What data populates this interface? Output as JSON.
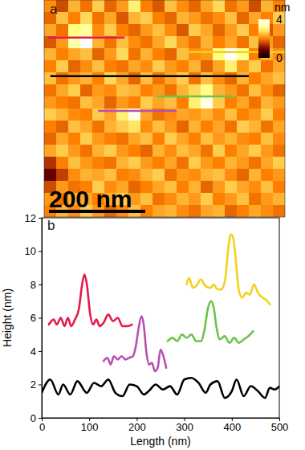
{
  "chart_data": [
    {
      "type": "heatmap",
      "panel_label": "a",
      "xlim": [
        0,
        500
      ],
      "ylim": [
        0,
        450
      ],
      "tick_labels": false,
      "x": [
        12.5,
        37.5,
        62.5,
        87.5,
        112.5,
        137.5,
        162.5,
        187.5,
        212.5,
        237.5,
        262.5,
        287.5,
        312.5,
        337.5,
        362.5,
        387.5,
        412.5,
        437.5,
        462.5,
        487.5
      ],
      "y": [
        437.5,
        412.5,
        387.5,
        362.5,
        337.5,
        312.5,
        287.5,
        262.5,
        237.5,
        212.5,
        187.5,
        162.5,
        137.5,
        112.5,
        87.5,
        62.5,
        37.5,
        12.5
      ],
      "z": [
        [
          2.1,
          1.6,
          2.4,
          1.9,
          2.6,
          1.8,
          2.2,
          2.9,
          2.0,
          1.7,
          2.5,
          2.1,
          1.8,
          2.3,
          2.7,
          1.9,
          2.2,
          1.6,
          2.4,
          2.0
        ],
        [
          1.8,
          2.5,
          2.0,
          2.7,
          1.9,
          2.3,
          1.7,
          2.4,
          2.6,
          2.0,
          1.8,
          2.4,
          2.2,
          1.9,
          2.1,
          2.5,
          1.8,
          2.3,
          2.0,
          2.6
        ],
        [
          2.3,
          1.9,
          3.0,
          3.2,
          2.1,
          2.6,
          2.0,
          1.8,
          2.2,
          2.5,
          2.1,
          1.7,
          2.6,
          2.3,
          1.8,
          2.2,
          2.6,
          2.0,
          1.7,
          2.2
        ],
        [
          1.7,
          2.2,
          3.3,
          4.0,
          2.4,
          1.9,
          2.5,
          2.1,
          1.9,
          2.3,
          2.7,
          2.2,
          1.9,
          2.4,
          2.0,
          2.3,
          1.9,
          2.5,
          2.2,
          1.8
        ],
        [
          2.4,
          2.0,
          2.3,
          2.5,
          1.8,
          2.2,
          2.7,
          1.9,
          2.4,
          2.0,
          1.8,
          2.5,
          2.1,
          2.2,
          3.0,
          4.0,
          3.1,
          2.0,
          2.4,
          2.1
        ],
        [
          2.0,
          2.6,
          1.8,
          2.1,
          2.5,
          2.0,
          1.9,
          2.3,
          2.1,
          2.6,
          2.2,
          2.0,
          2.4,
          1.8,
          2.3,
          2.9,
          2.2,
          2.6,
          1.9,
          2.3
        ],
        [
          2.5,
          1.9,
          2.2,
          2.4,
          2.0,
          2.7,
          2.3,
          1.8,
          2.5,
          1.9,
          2.3,
          2.6,
          1.9,
          2.5,
          2.1,
          1.8,
          2.4,
          2.0,
          2.3,
          2.5
        ],
        [
          1.9,
          2.3,
          2.6,
          1.8,
          2.2,
          2.1,
          2.5,
          2.4,
          2.0,
          2.2,
          1.9,
          2.4,
          2.7,
          3.1,
          2.4,
          2.2,
          1.9,
          2.5,
          2.1,
          1.8
        ],
        [
          2.2,
          2.0,
          1.9,
          2.5,
          2.3,
          1.8,
          2.2,
          2.0,
          2.6,
          2.3,
          2.5,
          2.0,
          2.9,
          3.8,
          2.6,
          2.0,
          2.3,
          1.9,
          2.4,
          2.2
        ],
        [
          2.6,
          2.4,
          2.1,
          2.0,
          2.6,
          2.3,
          2.9,
          3.8,
          2.3,
          1.9,
          2.1,
          2.3,
          2.2,
          2.4,
          2.1,
          2.5,
          2.0,
          2.2,
          2.6,
          2.0
        ],
        [
          2.0,
          1.8,
          2.5,
          2.3,
          1.9,
          2.4,
          2.6,
          2.8,
          2.1,
          2.5,
          2.2,
          1.8,
          2.4,
          2.0,
          2.3,
          1.9,
          2.6,
          2.4,
          1.9,
          2.3
        ],
        [
          1.8,
          2.3,
          2.0,
          2.6,
          2.2,
          2.0,
          1.9,
          2.3,
          2.5,
          2.0,
          2.6,
          2.3,
          2.0,
          2.5,
          2.2,
          2.4,
          2.1,
          2.0,
          2.5,
          2.1
        ],
        [
          2.3,
          2.6,
          2.2,
          1.9,
          2.4,
          2.6,
          2.2,
          2.0,
          1.8,
          2.4,
          2.1,
          2.5,
          2.3,
          1.9,
          2.6,
          2.0,
          2.3,
          2.6,
          2.2,
          1.9
        ],
        [
          1.4,
          2.0,
          2.5,
          2.2,
          2.0,
          1.9,
          2.4,
          2.6,
          2.2,
          2.0,
          2.3,
          1.9,
          2.6,
          2.2,
          2.0,
          2.4,
          2.2,
          1.9,
          2.3,
          2.6
        ],
        [
          0.8,
          1.5,
          2.1,
          2.4,
          2.3,
          2.5,
          2.0,
          2.1,
          2.4,
          2.6,
          1.9,
          2.2,
          2.1,
          2.4,
          2.5,
          2.1,
          1.8,
          2.4,
          2.0,
          2.2
        ],
        [
          1.6,
          2.2,
          1.9,
          2.0,
          2.6,
          2.1,
          2.3,
          1.8,
          2.0,
          2.3,
          2.5,
          2.0,
          2.4,
          1.8,
          2.2,
          2.6,
          2.3,
          2.1,
          2.5,
          2.0
        ],
        [
          2.2,
          1.9,
          2.4,
          2.3,
          2.0,
          2.4,
          2.6,
          2.2,
          2.5,
          1.9,
          2.1,
          2.4,
          2.2,
          2.6,
          2.0,
          2.2,
          2.5,
          1.9,
          2.2,
          2.4
        ],
        [
          2.0,
          2.4,
          2.1,
          2.6,
          2.2,
          1.8,
          2.1,
          2.5,
          2.0,
          2.3,
          2.4,
          2.1,
          1.9,
          2.3,
          2.4,
          1.8,
          2.0,
          2.3,
          2.1,
          1.9
        ]
      ],
      "colorbar": {
        "label": "nm",
        "range": [
          0,
          4
        ],
        "ticks": [
          0,
          4
        ]
      },
      "scale_bar": {
        "label": "200 nm",
        "length": 200
      },
      "profile_lines": [
        {
          "color": "#e31a4b",
          "x": [
            8,
            167
          ],
          "y": [
            372,
            372
          ]
        },
        {
          "color": "#f2d21a",
          "x": [
            292,
            500
          ],
          "y": [
            342,
            342
          ]
        },
        {
          "color": "#000000",
          "x": [
            13,
            425
          ],
          "y": [
            292,
            292
          ]
        },
        {
          "color": "#6cc24a",
          "x": [
            233,
            395
          ],
          "y": [
            250,
            250
          ]
        },
        {
          "color": "#b94fb0",
          "x": [
            112,
            275
          ],
          "y": [
            220,
            220
          ]
        }
      ]
    },
    {
      "type": "line",
      "panel_label": "b",
      "xlabel": "Length (nm)",
      "ylabel": "Height (nm)",
      "xlim": [
        0,
        500
      ],
      "ylim": [
        0,
        12
      ],
      "xticks": [
        0,
        100,
        200,
        300,
        400,
        500
      ],
      "yticks": [
        0,
        2,
        4,
        6,
        8,
        10,
        12
      ],
      "series": [
        {
          "color": "#000000",
          "x": [
            0,
            18,
            35,
            45,
            60,
            75,
            95,
            110,
            125,
            140,
            155,
            170,
            185,
            200,
            215,
            225,
            240,
            255,
            270,
            285,
            300,
            315,
            330,
            345,
            355,
            370,
            385,
            400,
            410,
            425,
            440,
            455,
            470,
            480,
            490,
            500
          ],
          "values": [
            1.5,
            2.3,
            1.4,
            2.0,
            1.4,
            2.2,
            1.5,
            2.1,
            1.9,
            2.3,
            1.5,
            1.3,
            2.0,
            1.9,
            1.4,
            1.6,
            2.0,
            1.7,
            1.9,
            1.4,
            2.3,
            2.4,
            2.1,
            1.5,
            2.0,
            2.2,
            1.2,
            1.6,
            2.3,
            1.3,
            1.9,
            1.6,
            1.2,
            1.8,
            1.7,
            1.9
          ]
        },
        {
          "color": "#e31a4b",
          "x": [
            15,
            25,
            32,
            40,
            48,
            55,
            62,
            70,
            78,
            85,
            90,
            95,
            102,
            108,
            115,
            122,
            130,
            140,
            150,
            160,
            170,
            180,
            190
          ],
          "values": [
            5.6,
            5.9,
            5.6,
            6.0,
            5.5,
            6.0,
            5.5,
            5.9,
            6.5,
            8.0,
            8.6,
            8.0,
            6.2,
            5.6,
            5.9,
            5.5,
            5.7,
            6.2,
            5.8,
            6.0,
            5.5,
            5.5,
            5.6
          ]
        },
        {
          "color": "#b94fb0",
          "x": [
            130,
            138,
            145,
            152,
            160,
            168,
            176,
            184,
            192,
            198,
            204,
            210,
            215,
            220,
            226,
            232,
            238,
            244,
            250,
            256,
            262
          ],
          "values": [
            3.4,
            3.6,
            3.2,
            3.7,
            3.5,
            3.7,
            3.5,
            3.6,
            3.7,
            4.3,
            5.4,
            6.1,
            5.5,
            4.0,
            3.2,
            3.3,
            2.8,
            3.0,
            4.1,
            3.7,
            3.0
          ]
        },
        {
          "color": "#6cc24a",
          "x": [
            265,
            275,
            285,
            295,
            305,
            315,
            325,
            335,
            342,
            350,
            356,
            362,
            368,
            375,
            385,
            395,
            405,
            415,
            425,
            435,
            445
          ],
          "values": [
            4.6,
            4.8,
            4.6,
            5.0,
            4.8,
            5.0,
            4.6,
            4.6,
            5.2,
            6.6,
            7.0,
            6.6,
            5.4,
            4.7,
            4.9,
            4.5,
            4.8,
            4.5,
            4.7,
            4.9,
            5.2
          ]
        },
        {
          "color": "#f2d21a",
          "x": [
            305,
            310,
            318,
            325,
            335,
            345,
            355,
            362,
            370,
            378,
            386,
            393,
            398,
            403,
            408,
            414,
            422,
            430,
            438,
            447,
            455,
            465,
            475,
            480
          ],
          "values": [
            8.0,
            8.4,
            7.8,
            7.9,
            8.3,
            7.9,
            7.8,
            8.0,
            7.7,
            7.7,
            8.3,
            10.3,
            11.0,
            10.8,
            9.6,
            7.8,
            7.2,
            7.5,
            7.4,
            8.0,
            7.5,
            7.2,
            7.0,
            6.8
          ]
        }
      ]
    }
  ]
}
